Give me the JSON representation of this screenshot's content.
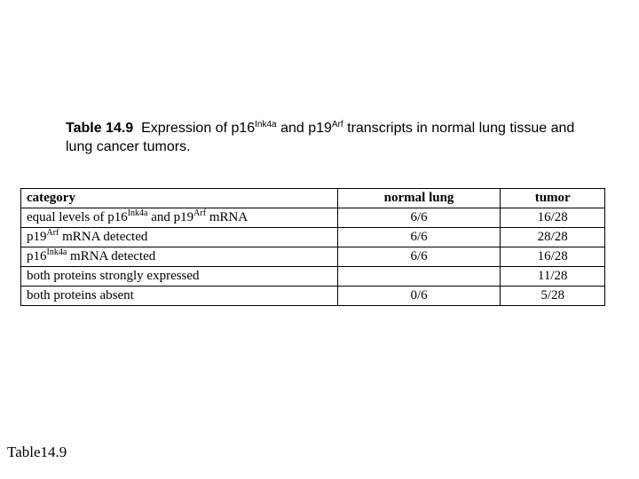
{
  "caption": {
    "label": "Table 14.9",
    "text_1": "Expression of p16",
    "sup_1": "Ink4a",
    "text_2": " and p19",
    "sup_2": "Arf",
    "text_3": " transcripts in normal lung tissue and lung cancer tumors."
  },
  "table": {
    "headers": {
      "category": "category",
      "normal_lung": "normal lung",
      "tumor": "tumor"
    },
    "rows": [
      {
        "category_parts": [
          "equal levels of p16",
          "Ink4a",
          " and p19",
          "Arf",
          " mRNA"
        ],
        "normal_lung": "6/6",
        "tumor": "16/28"
      },
      {
        "category_parts": [
          "p19",
          "Arf",
          " mRNA detected"
        ],
        "normal_lung": "6/6",
        "tumor": "28/28"
      },
      {
        "category_parts": [
          "p16",
          "Ink4a",
          " mRNA detected"
        ],
        "normal_lung": "6/6",
        "tumor": "16/28"
      },
      {
        "category_parts": [
          "both proteins strongly expressed"
        ],
        "normal_lung": "",
        "tumor": "11/28"
      },
      {
        "category_parts": [
          "both proteins absent"
        ],
        "normal_lung": "0/6",
        "tumor": "5/28"
      }
    ]
  },
  "footer": {
    "label": "Table14.9"
  }
}
